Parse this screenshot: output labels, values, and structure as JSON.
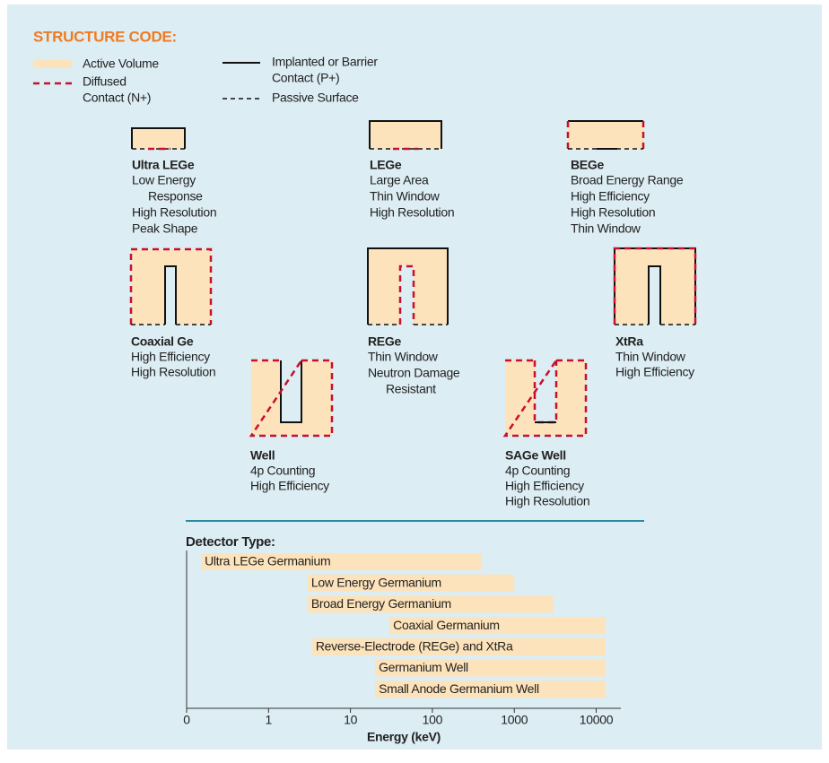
{
  "legend": {
    "title": "STRUCTURE CODE:",
    "active": "Active Volume",
    "diffused": [
      "Diffused",
      "Contact (N+)"
    ],
    "implanted": [
      "Implanted or Barrier",
      "Contact (P+)"
    ],
    "passive": "Passive Surface"
  },
  "detectors": [
    {
      "name": "Ultra LEGe",
      "lines": [
        "Low Energy",
        "Response",
        "High Resolution",
        "Peak Shape"
      ]
    },
    {
      "name": "LEGe",
      "lines": [
        "Large Area",
        "Thin Window",
        "High Resolution"
      ]
    },
    {
      "name": "BEGe",
      "lines": [
        "Broad Energy Range",
        "High Efficiency",
        "High Resolution",
        "Thin Window"
      ]
    },
    {
      "name": "Coaxial Ge",
      "lines": [
        "High Efficiency",
        "High Resolution"
      ]
    },
    {
      "name": "REGe",
      "lines": [
        "Thin Window",
        "Neutron Damage",
        "Resistant"
      ]
    },
    {
      "name": "XtRa",
      "lines": [
        "Thin Window",
        "High Efficiency"
      ]
    },
    {
      "name": "Well",
      "lines": [
        "4p Counting",
        "High Efficiency"
      ]
    },
    {
      "name": "SAGe Well",
      "lines": [
        "4p Counting",
        "High Efficiency",
        "High Resolution"
      ]
    }
  ],
  "chart_data": {
    "type": "range-bar",
    "title": "Detector Type:",
    "categories": [
      "Ultra LEGe Germanium",
      "Low Energy Germanium",
      "Broad Energy Germanium",
      "Coaxial Germanium",
      "Reverse-Electrode (REGe) and XtRa",
      "Germanium Well",
      "Small Anode Germanium Well"
    ],
    "start": [
      0.15,
      3,
      3,
      30,
      3.4,
      20,
      20
    ],
    "end": [
      400,
      1000,
      3000,
      13000,
      13000,
      13000,
      13000
    ],
    "color": "#fde3bb",
    "xlabel": "Energy (keV)",
    "xscale": "log",
    "xlim": [
      0.1,
      20000
    ],
    "xticks": [
      {
        "value": 0.1,
        "label": "0"
      },
      1,
      10,
      100,
      1000,
      10000
    ]
  }
}
